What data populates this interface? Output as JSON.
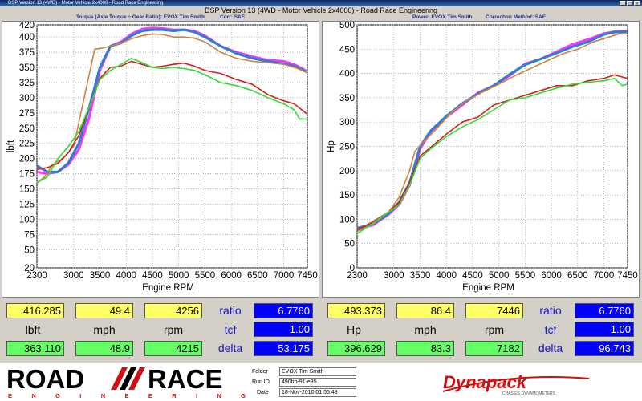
{
  "window": {
    "title": "DSP Version 13 (4WD) - Motor Vehicle 2x4000 - Road Race Engineering",
    "controls": [
      "_",
      "□",
      "×"
    ]
  },
  "header": {
    "title": "DSP Version 13 (4WD - Motor Vehicle 2x4000) - Road Race Engineering",
    "left_sub_1": "Torque (Axle Torque ÷ Gear Ratio): EVOX Tim Smith",
    "left_sub_2": "Corr: SAE",
    "right_sub_1": "Power: EVOX Tim Smith",
    "right_sub_2": "Correction Method: SAE"
  },
  "chart_data": [
    {
      "type": "line",
      "xlabel": "Engine RPM",
      "ylabel": "lbft",
      "xlim": [
        2300,
        7450
      ],
      "ylim": [
        20,
        420
      ],
      "xticks": [
        2300,
        3000,
        3500,
        4000,
        4500,
        5000,
        5500,
        6000,
        6500,
        7000,
        7450
      ],
      "yticks": [
        20,
        50,
        75,
        100,
        125,
        150,
        175,
        200,
        225,
        250,
        275,
        300,
        325,
        350,
        375,
        400,
        420
      ],
      "grid": true,
      "series": [
        {
          "color": "#ff33ff",
          "x": [
            2300,
            2500,
            2700,
            2900,
            3100,
            3300,
            3500,
            3700,
            3900,
            4100,
            4300,
            4500,
            4700,
            4900,
            5100,
            5300,
            5500,
            5800,
            6100,
            6400,
            6700,
            7000,
            7200,
            7450
          ],
          "y": [
            178,
            175,
            178,
            190,
            215,
            268,
            345,
            385,
            392,
            405,
            413,
            415,
            414,
            412,
            412,
            410,
            402,
            385,
            375,
            368,
            362,
            360,
            355,
            343
          ]
        },
        {
          "color": "#2a80d0",
          "x": [
            2300,
            2500,
            2700,
            2900,
            3100,
            3300,
            3500,
            3700,
            3900,
            4100,
            4300,
            4500,
            4700,
            4900,
            5100,
            5300,
            5500,
            5800,
            6100,
            6400,
            6700,
            7000,
            7200,
            7450
          ],
          "y": [
            188,
            178,
            178,
            193,
            225,
            285,
            350,
            385,
            390,
            402,
            410,
            412,
            412,
            410,
            412,
            408,
            400,
            385,
            373,
            365,
            360,
            356,
            352,
            342
          ]
        },
        {
          "color": "#cd853f",
          "x": [
            2300,
            2450,
            2600,
            2800,
            3000,
            3200,
            3400,
            3550,
            3700,
            3900,
            4100,
            4300,
            4500,
            4700,
            4900,
            5100,
            5300,
            5500,
            5800,
            6100,
            6400,
            6700,
            7000,
            7200,
            7450
          ],
          "y": [
            160,
            170,
            190,
            200,
            220,
            300,
            380,
            382,
            385,
            390,
            397,
            402,
            405,
            404,
            400,
            400,
            398,
            392,
            375,
            365,
            360,
            358,
            355,
            350,
            342
          ]
        },
        {
          "color": "#d02020",
          "x": [
            2300,
            2500,
            2700,
            2900,
            3100,
            3300,
            3500,
            3700,
            3900,
            4100,
            4300,
            4500,
            4700,
            4900,
            5100,
            5300,
            5500,
            5800,
            6100,
            6400,
            6700,
            7000,
            7200,
            7450
          ],
          "y": [
            182,
            185,
            192,
            210,
            238,
            285,
            332,
            350,
            352,
            360,
            355,
            350,
            352,
            355,
            357,
            352,
            345,
            340,
            330,
            322,
            305,
            295,
            290,
            273
          ]
        },
        {
          "color": "#33dd33",
          "x": [
            2300,
            2500,
            2700,
            2900,
            3100,
            3300,
            3500,
            3700,
            3900,
            4100,
            4300,
            4500,
            4700,
            4900,
            5100,
            5300,
            5500,
            5800,
            6100,
            6400,
            6700,
            7000,
            7200,
            7300,
            7450
          ],
          "y": [
            160,
            170,
            200,
            220,
            245,
            285,
            330,
            345,
            355,
            365,
            358,
            350,
            348,
            350,
            348,
            345,
            338,
            325,
            320,
            312,
            300,
            290,
            280,
            265,
            265
          ]
        }
      ]
    },
    {
      "type": "line",
      "xlabel": "Engine RPM",
      "ylabel": "Hp",
      "xlim": [
        2300,
        7450
      ],
      "ylim": [
        0,
        500
      ],
      "xticks": [
        2300,
        3000,
        3500,
        4000,
        4500,
        5000,
        5500,
        6000,
        6500,
        7000,
        7450
      ],
      "yticks": [
        0,
        50,
        100,
        150,
        200,
        250,
        300,
        350,
        400,
        450,
        500
      ],
      "grid": true,
      "series": [
        {
          "color": "#ff33ff",
          "x": [
            2300,
            2600,
            2900,
            3100,
            3300,
            3500,
            3700,
            4000,
            4300,
            4600,
            4900,
            5200,
            5500,
            5800,
            6100,
            6400,
            6700,
            7000,
            7200,
            7446
          ],
          "y": [
            80,
            88,
            110,
            130,
            170,
            245,
            280,
            310,
            335,
            360,
            375,
            395,
            420,
            430,
            445,
            460,
            470,
            482,
            486,
            487
          ]
        },
        {
          "color": "#2a80d0",
          "x": [
            2300,
            2600,
            2900,
            3100,
            3300,
            3500,
            3700,
            4000,
            4300,
            4600,
            4900,
            5200,
            5500,
            5800,
            6100,
            6400,
            6700,
            7000,
            7200,
            7446
          ],
          "y": [
            82,
            90,
            112,
            135,
            175,
            250,
            282,
            312,
            338,
            358,
            375,
            398,
            418,
            430,
            442,
            455,
            465,
            480,
            485,
            486
          ]
        },
        {
          "color": "#cd853f",
          "x": [
            2300,
            2600,
            2900,
            3100,
            3300,
            3400,
            3550,
            3800,
            4100,
            4400,
            4700,
            5000,
            5300,
            5600,
            5900,
            6200,
            6500,
            6800,
            7100,
            7300,
            7446
          ],
          "y": [
            75,
            90,
            115,
            145,
            200,
            240,
            258,
            285,
            320,
            345,
            362,
            378,
            395,
            410,
            425,
            440,
            450,
            465,
            475,
            482,
            482
          ]
        },
        {
          "color": "#d02020",
          "x": [
            2300,
            2600,
            2900,
            3100,
            3300,
            3500,
            3700,
            4000,
            4300,
            4600,
            4900,
            5200,
            5500,
            5800,
            6100,
            6400,
            6700,
            7000,
            7200,
            7446
          ],
          "y": [
            78,
            95,
            115,
            135,
            175,
            230,
            248,
            275,
            300,
            310,
            335,
            345,
            355,
            365,
            375,
            375,
            385,
            390,
            397,
            390
          ]
        },
        {
          "color": "#33dd33",
          "x": [
            2300,
            2600,
            2900,
            3100,
            3300,
            3500,
            3700,
            4000,
            4300,
            4600,
            4900,
            5200,
            5500,
            5800,
            6100,
            6400,
            6700,
            7000,
            7200,
            7350,
            7446
          ],
          "y": [
            70,
            92,
            115,
            130,
            170,
            225,
            245,
            270,
            290,
            305,
            325,
            345,
            350,
            360,
            370,
            378,
            382,
            385,
            390,
            375,
            378
          ]
        }
      ]
    }
  ],
  "readouts": {
    "left": {
      "row1": [
        "416.285",
        "49.4",
        "4256"
      ],
      "row1_label": "ratio",
      "row1_blue": "6.7760",
      "labels": [
        "lbft",
        "mph",
        "rpm"
      ],
      "row2_label": "tcf",
      "row2_blue": "1.00",
      "row3": [
        "363.110",
        "48.9",
        "4215"
      ],
      "row3_label": "delta",
      "row3_blue": "53.175"
    },
    "right": {
      "row1": [
        "493.373",
        "86.4",
        "7446"
      ],
      "row1_label": "ratio",
      "row1_blue": "6.7760",
      "labels": [
        "Hp",
        "mph",
        "rpm"
      ],
      "row2_label": "tcf",
      "row2_blue": "1.00",
      "row3": [
        "396.629",
        "83.3",
        "7182"
      ],
      "row3_label": "delta",
      "row3_blue": "96.743"
    }
  },
  "footer": {
    "logo_road": "ROAD",
    "logo_race": "RACE",
    "logo_sub": "E N G I N E E R I N G",
    "folder_label": "Folder",
    "folder_value": "EVOX Tim Smith",
    "runid_label": "Run ID",
    "runid_value": "490hp-91-e85",
    "date_label": "Date",
    "date_value": "18-Nov-2010 01:55:48",
    "dynapack": "Dynapack",
    "dynapack_sub": "CHASSIS DYNAMOMETERS"
  },
  "colors": {
    "yellow": "#ffff66",
    "green": "#66ff66",
    "blue": "#0000ff",
    "magenta": "#ff33ff",
    "red": "#d02020"
  }
}
